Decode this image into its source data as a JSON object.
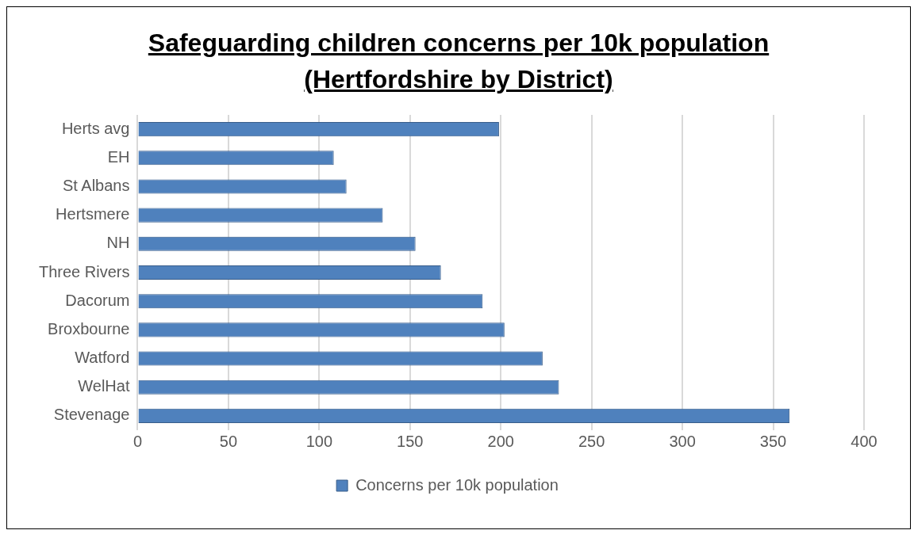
{
  "chart_data": {
    "type": "bar",
    "orientation": "horizontal",
    "title": "Safeguarding children concerns per 10k population (Hertfordshire by District)",
    "categories": [
      "Herts avg",
      "EH",
      "St Albans",
      "Hertsmere",
      "NH",
      "Three Rivers",
      "Dacorum",
      "Broxbourne",
      "Watford",
      "WelHat",
      "Stevenage"
    ],
    "series": [
      {
        "name": "Concerns per 10k population",
        "color": "#4f81bd",
        "values": [
          199,
          108,
          115,
          135,
          153,
          167,
          190,
          202,
          223,
          232,
          359
        ]
      }
    ],
    "xlim": [
      0,
      400
    ],
    "xticks": [
      0,
      50,
      100,
      150,
      200,
      250,
      300,
      350,
      400
    ],
    "grid": "x",
    "legend": "bottom"
  }
}
